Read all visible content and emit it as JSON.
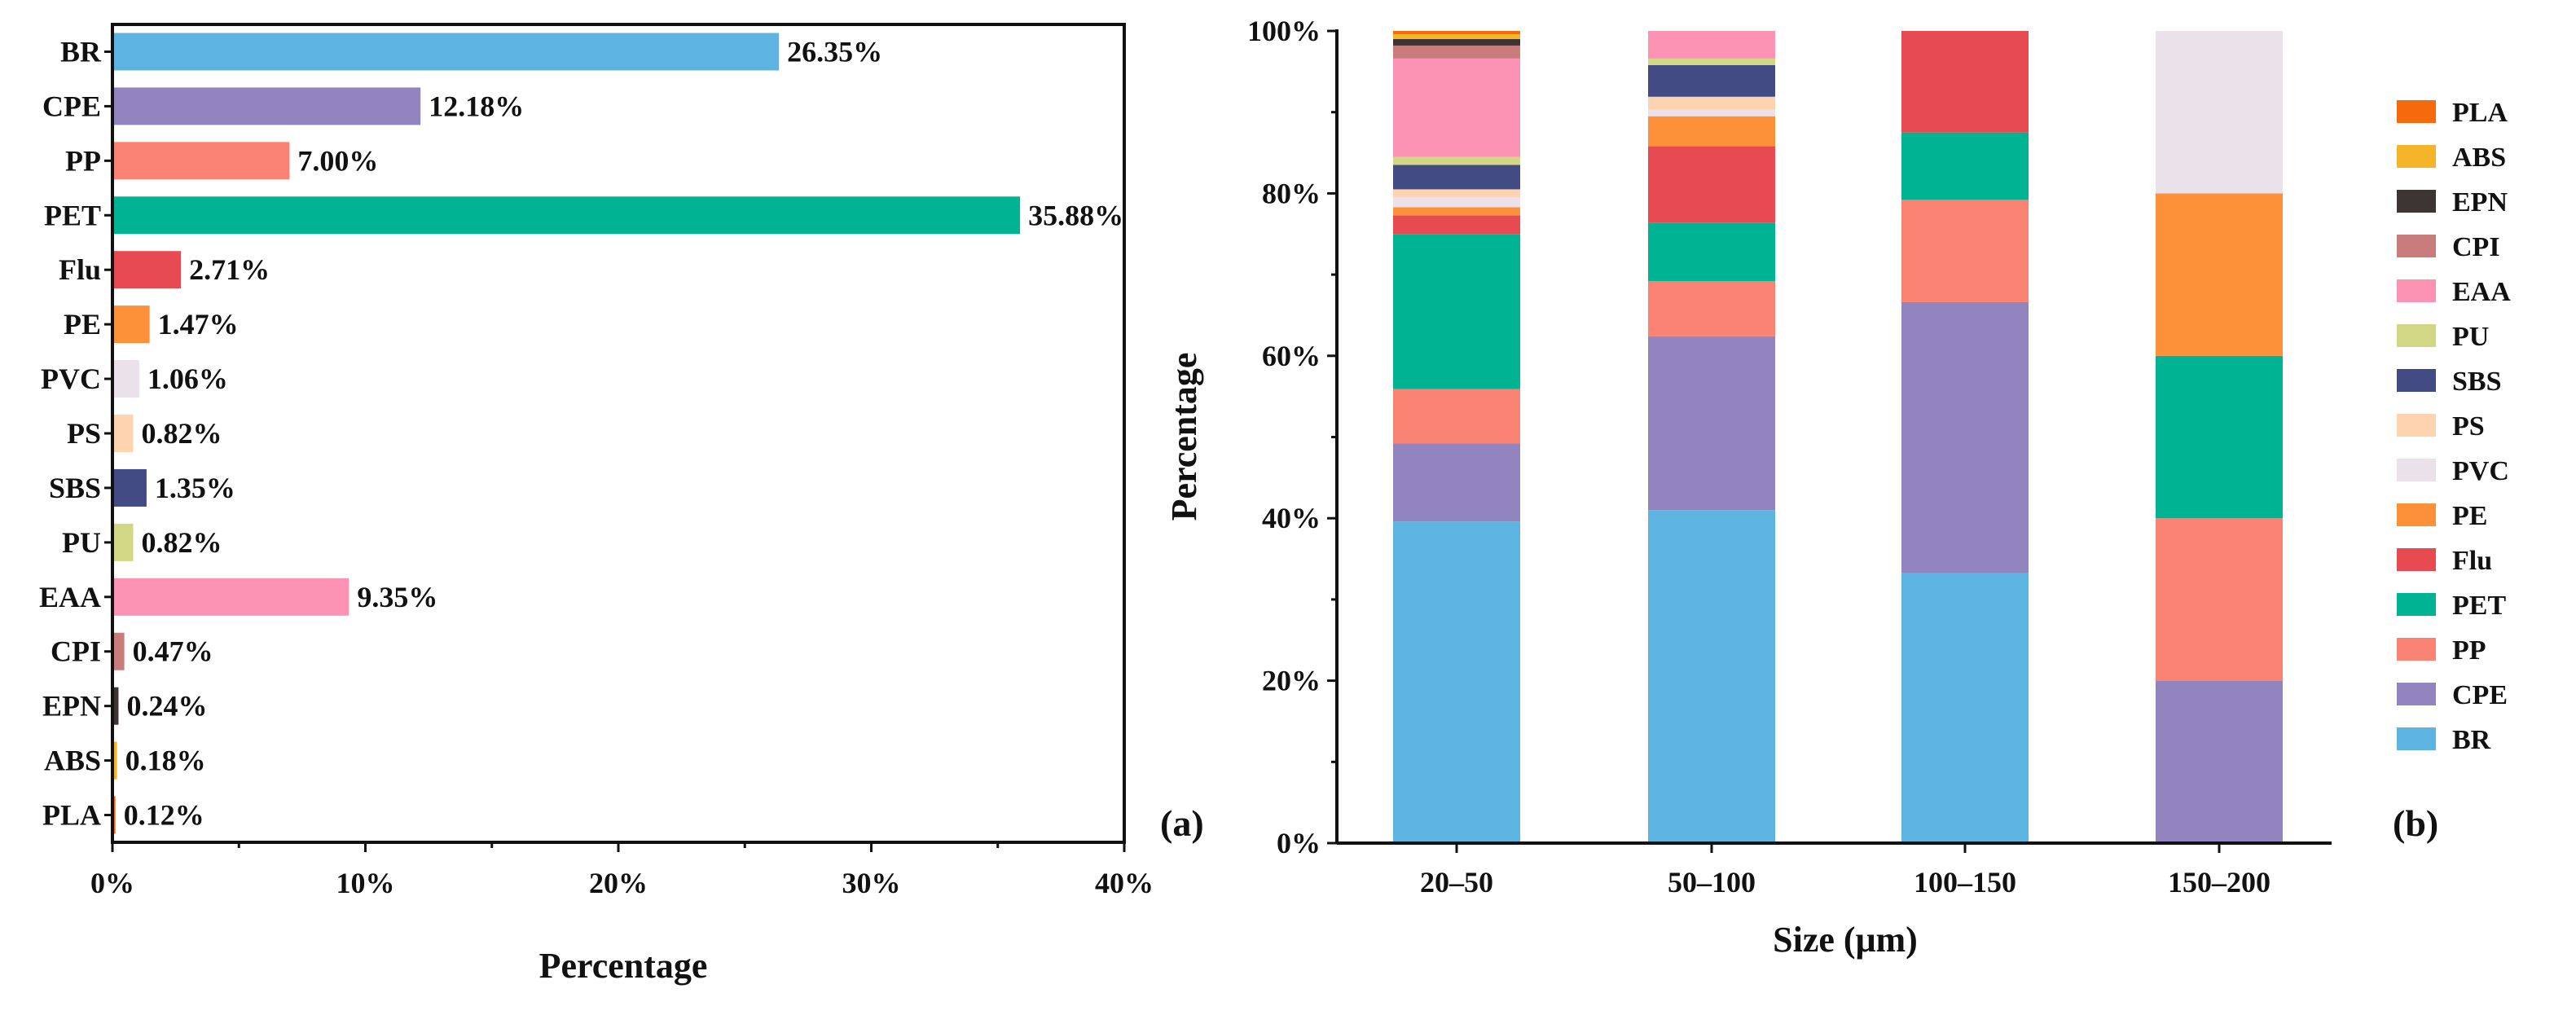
{
  "chart_data": [
    {
      "panel": "(a)",
      "type": "bar",
      "orientation": "horizontal",
      "title": "",
      "xlabel": "Percentage",
      "ylabel": "",
      "xlim": [
        0,
        40
      ],
      "x_ticks": [
        "0%",
        "10%",
        "20%",
        "30%",
        "40%"
      ],
      "categories": [
        "BR",
        "CPE",
        "PP",
        "PET",
        "Flu",
        "PE",
        "PVC",
        "PS",
        "SBS",
        "PU",
        "EAA",
        "CPI",
        "EPN",
        "ABS",
        "PLA"
      ],
      "values": [
        26.35,
        12.18,
        7.0,
        35.88,
        2.71,
        1.47,
        1.06,
        0.82,
        1.35,
        0.82,
        9.35,
        0.47,
        0.24,
        0.18,
        0.12
      ],
      "data_labels": [
        "26.35%",
        "12.18%",
        "7.00%",
        "35.88%",
        "2.71%",
        "1.47%",
        "1.06%",
        "0.82%",
        "1.35%",
        "0.82%",
        "9.35%",
        "0.47%",
        "0.24%",
        "0.18%",
        "0.12%"
      ],
      "colors": [
        "#5db4e0",
        "#9284be",
        "#fa8374",
        "#00b393",
        "#e84a52",
        "#fd913a",
        "#ebe1ea",
        "#fed4b0",
        "#434b85",
        "#d2d786",
        "#fc92b4",
        "#c87c7c",
        "#3d3434",
        "#f5b52a",
        "#f56a0c"
      ]
    },
    {
      "panel": "(b)",
      "type": "bar",
      "stacked": true,
      "title": "",
      "xlabel": "Size (μm)",
      "ylabel": "Percentage",
      "ylim": [
        0,
        100
      ],
      "y_ticks": [
        "0%",
        "20%",
        "40%",
        "60%",
        "80%",
        "100%"
      ],
      "categories": [
        "20–50",
        "50–100",
        "100–150",
        "150–200"
      ],
      "series": [
        {
          "name": "BR",
          "color": "#5db4e0",
          "values": [
            39.6,
            41.0,
            33.3,
            0
          ]
        },
        {
          "name": "CPE",
          "color": "#9284be",
          "values": [
            9.6,
            21.4,
            33.3,
            20
          ]
        },
        {
          "name": "PP",
          "color": "#fa8374",
          "values": [
            6.7,
            6.8,
            12.6,
            20
          ]
        },
        {
          "name": "PET",
          "color": "#00b393",
          "values": [
            19.1,
            7.2,
            8.3,
            20
          ]
        },
        {
          "name": "Flu",
          "color": "#e84a52",
          "values": [
            2.3,
            9.4,
            12.5,
            0
          ]
        },
        {
          "name": "PE",
          "color": "#fd913a",
          "values": [
            1.0,
            3.7,
            0,
            20
          ]
        },
        {
          "name": "PVC",
          "color": "#ebe1ea",
          "values": [
            1.2,
            0.8,
            0,
            20
          ]
        },
        {
          "name": "PS",
          "color": "#fed4b0",
          "values": [
            1.0,
            1.6,
            0,
            0
          ]
        },
        {
          "name": "SBS",
          "color": "#434b85",
          "values": [
            3.0,
            3.9,
            0,
            0
          ]
        },
        {
          "name": "PU",
          "color": "#d2d786",
          "values": [
            1.0,
            0.8,
            0,
            0
          ]
        },
        {
          "name": "EAA",
          "color": "#fc92b4",
          "values": [
            12.1,
            3.4,
            0,
            0
          ]
        },
        {
          "name": "CPI",
          "color": "#c87c7c",
          "values": [
            1.6,
            0,
            0,
            0
          ]
        },
        {
          "name": "EPN",
          "color": "#3d3434",
          "values": [
            0.8,
            0,
            0,
            0
          ]
        },
        {
          "name": "ABS",
          "color": "#f5b52a",
          "values": [
            0.6,
            0,
            0,
            0
          ]
        },
        {
          "name": "PLA",
          "color": "#f56a0c",
          "values": [
            0.4,
            0,
            0,
            0
          ]
        }
      ],
      "legend_order": [
        "PLA",
        "ABS",
        "EPN",
        "CPI",
        "EAA",
        "PU",
        "SBS",
        "PS",
        "PVC",
        "PE",
        "Flu",
        "PET",
        "PP",
        "CPE",
        "BR"
      ],
      "legend_position": "right"
    }
  ]
}
